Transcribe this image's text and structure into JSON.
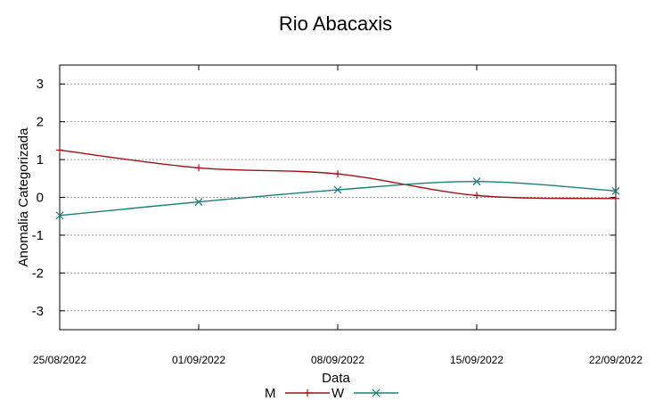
{
  "chart_data": {
    "type": "line",
    "title": "Rio Abacaxis",
    "xlabel": "Data",
    "ylabel": "Anomalia Categorizada",
    "x": [
      "25/08/2022",
      "01/09/2022",
      "08/09/2022",
      "15/09/2022",
      "22/09/2022"
    ],
    "ylim": [
      -3.5,
      3.5
    ],
    "yticks": [
      3,
      2,
      1,
      0,
      -1,
      -2,
      -3
    ],
    "yticklabels": [
      "3",
      "2",
      "1",
      "0",
      "-1",
      "-2",
      "-3"
    ],
    "grid": true,
    "legend_position": "bottom-center",
    "series": [
      {
        "name": "M",
        "color": "#a50f15",
        "marker": "plus",
        "values": [
          1.25,
          0.78,
          0.62,
          0.05,
          -0.03
        ]
      },
      {
        "name": "W",
        "color": "#1b7f7a",
        "marker": "x",
        "values": [
          -0.48,
          -0.12,
          0.2,
          0.42,
          0.17
        ]
      }
    ]
  }
}
